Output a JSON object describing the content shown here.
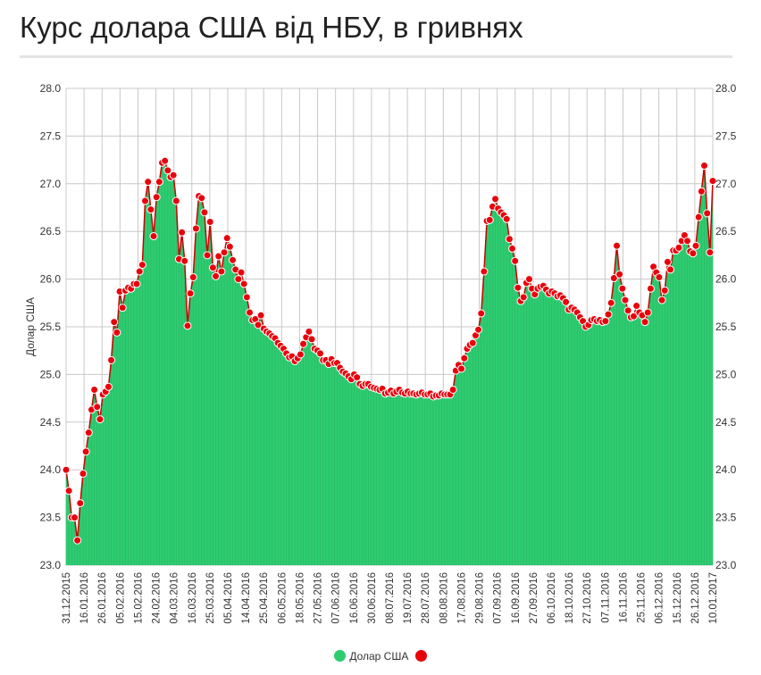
{
  "page_title": "Курс долара США від НБУ, в гривнях",
  "colors": {
    "area": "#2ecc71",
    "area_stroke": "#27ae60",
    "line": "#cc0000",
    "marker": "#e8000b",
    "grid": "#c8c8c8"
  },
  "legend": [
    {
      "label": "Долар США",
      "color": "#2ecc71",
      "icon": "circle"
    },
    {
      "label": "",
      "color": "#e8000b",
      "icon": "circle"
    }
  ],
  "chart_data": {
    "type": "area",
    "title": "Курс долара США від НБУ, в гривнях",
    "ylabel": "Долар США",
    "xlabel": "",
    "ylim": [
      23.0,
      28.0
    ],
    "yticks": [
      "23.0",
      "23.5",
      "24.0",
      "24.5",
      "25.0",
      "25.5",
      "26.0",
      "26.5",
      "27.0",
      "27.5",
      "28.0"
    ],
    "x_tick_labels": [
      "31.12.2015",
      "16.01.2016",
      "26.01.2016",
      "05.02.2016",
      "15.02.2016",
      "24.02.2016",
      "04.03.2016",
      "16.03.2016",
      "25.03.2016",
      "05.04.2016",
      "14.04.2016",
      "25.04.2016",
      "06.05.2016",
      "18.05.2016",
      "27.05.2016",
      "07.06.2016",
      "16.06.2016",
      "30.06.2016",
      "08.07.2016",
      "19.07.2016",
      "28.07.2016",
      "08.08.2016",
      "17.08.2016",
      "29.08.2016",
      "07.09.2016",
      "16.09.2016",
      "27.09.2016",
      "06.10.2016",
      "18.10.2016",
      "27.10.2016",
      "07.11.2016",
      "16.11.2016",
      "25.11.2016",
      "06.12.2016",
      "15.12.2016",
      "26.12.2016",
      "10.01.2017"
    ],
    "grid": true,
    "legend_position": "bottom",
    "series": [
      {
        "name": "Долар США",
        "values": [
          24.0,
          23.78,
          23.5,
          23.5,
          23.26,
          23.65,
          23.96,
          24.19,
          24.39,
          24.63,
          24.84,
          24.66,
          24.53,
          24.79,
          24.82,
          24.87,
          25.15,
          25.55,
          25.44,
          25.87,
          25.7,
          25.88,
          25.91,
          25.9,
          25.95,
          25.95,
          26.08,
          26.15,
          26.82,
          27.02,
          26.73,
          26.45,
          26.86,
          27.02,
          27.22,
          27.24,
          27.14,
          27.07,
          27.09,
          26.82,
          26.21,
          26.49,
          26.19,
          25.51,
          25.85,
          26.02,
          26.53,
          26.87,
          26.85,
          26.7,
          26.25,
          26.6,
          26.12,
          26.03,
          26.24,
          26.08,
          26.28,
          26.43,
          26.34,
          26.2,
          26.1,
          26.0,
          26.07,
          25.95,
          25.81,
          25.65,
          25.57,
          25.58,
          25.52,
          25.62,
          25.48,
          25.45,
          25.43,
          25.4,
          25.38,
          25.33,
          25.3,
          25.27,
          25.22,
          25.18,
          25.19,
          25.14,
          25.17,
          25.21,
          25.32,
          25.39,
          25.45,
          25.37,
          25.27,
          25.25,
          25.22,
          25.15,
          25.15,
          25.11,
          25.16,
          25.12,
          25.12,
          25.07,
          25.03,
          25.01,
          24.98,
          24.95,
          25.0,
          24.97,
          24.9,
          24.88,
          24.9,
          24.9,
          24.87,
          24.86,
          24.85,
          24.84,
          24.85,
          24.8,
          24.81,
          24.83,
          24.8,
          24.82,
          24.84,
          24.81,
          24.8,
          24.82,
          24.8,
          24.8,
          24.79,
          24.8,
          24.81,
          24.79,
          24.79,
          24.8,
          24.77,
          24.78,
          24.78,
          24.8,
          24.79,
          24.79,
          24.79,
          24.84,
          25.04,
          25.1,
          25.06,
          25.17,
          25.27,
          25.31,
          25.33,
          25.41,
          25.47,
          25.64,
          26.08,
          26.61,
          26.62,
          26.76,
          26.84,
          26.74,
          26.7,
          26.67,
          26.63,
          26.42,
          26.32,
          26.19,
          25.91,
          25.77,
          25.81,
          25.96,
          26.0,
          25.9,
          25.84,
          25.9,
          25.92,
          25.93,
          25.89,
          25.85,
          25.87,
          25.85,
          25.82,
          25.83,
          25.8,
          25.76,
          25.68,
          25.7,
          25.68,
          25.65,
          25.6,
          25.56,
          25.5,
          25.52,
          25.57,
          25.58,
          25.56,
          25.57,
          25.55,
          25.56,
          25.63,
          25.75,
          26.01,
          26.35,
          26.05,
          25.9,
          25.78,
          25.67,
          25.6,
          25.61,
          25.72,
          25.65,
          25.62,
          25.55,
          25.65,
          25.9,
          26.13,
          26.07,
          26.02,
          25.78,
          25.88,
          26.18,
          26.1,
          26.3,
          26.3,
          26.33,
          26.4,
          26.46,
          26.4,
          26.29,
          26.27,
          26.35,
          26.65,
          26.92,
          27.19,
          26.69,
          26.28,
          27.03
        ]
      }
    ]
  }
}
